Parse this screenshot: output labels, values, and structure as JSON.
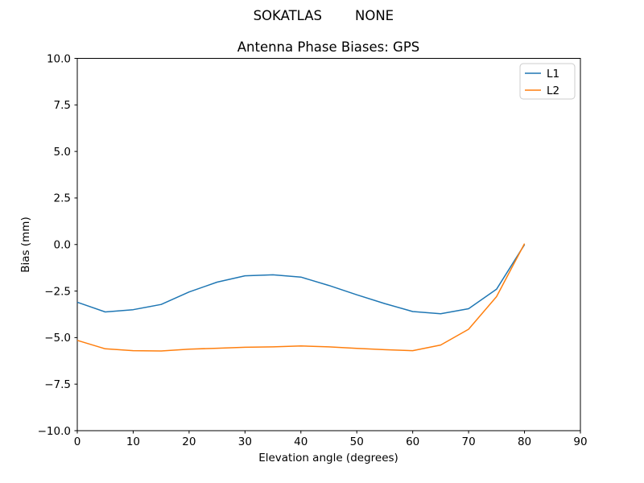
{
  "figure": {
    "suptitle_left": "SOKATLAS",
    "suptitle_right": "NONE",
    "background": "#ffffff"
  },
  "chart_data": {
    "type": "line",
    "title": "Antenna Phase Biases: GPS",
    "xlabel": "Elevation angle (degrees)",
    "ylabel": "Bias (mm)",
    "xlim": [
      0,
      90
    ],
    "ylim": [
      -10,
      10
    ],
    "x_ticks": [
      0,
      10,
      20,
      30,
      40,
      50,
      60,
      70,
      80,
      90
    ],
    "y_ticks": [
      -10,
      -7.5,
      -5,
      -2.5,
      0,
      2.5,
      5,
      7.5,
      10
    ],
    "grid": false,
    "legend_position": "upper right",
    "x": [
      0,
      5,
      10,
      15,
      20,
      25,
      30,
      35,
      40,
      45,
      50,
      55,
      60,
      65,
      70,
      75,
      80
    ],
    "series": [
      {
        "name": "L1",
        "color": "#1f77b4",
        "values": [
          -3.1,
          -3.62,
          -3.5,
          -3.22,
          -2.55,
          -2.02,
          -1.68,
          -1.63,
          -1.75,
          -2.2,
          -2.7,
          -3.17,
          -3.6,
          -3.72,
          -3.45,
          -2.4,
          0.0
        ]
      },
      {
        "name": "L2",
        "color": "#ff7f0e",
        "values": [
          -5.15,
          -5.6,
          -5.7,
          -5.72,
          -5.62,
          -5.57,
          -5.52,
          -5.5,
          -5.45,
          -5.5,
          -5.58,
          -5.65,
          -5.7,
          -5.4,
          -4.55,
          -2.8,
          0.05
        ]
      }
    ]
  },
  "style": {
    "spine_color": "#000000",
    "legend_border": "#cccccc",
    "legend_bg": "#ffffff"
  }
}
